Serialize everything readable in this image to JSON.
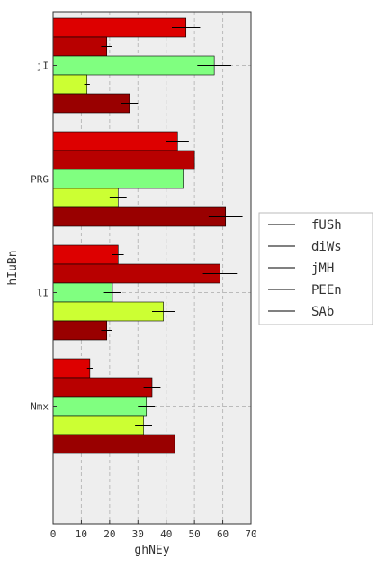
{
  "chart_data": {
    "type": "bar",
    "orientation": "horizontal",
    "title": "",
    "xlabel": "ghNEy",
    "ylabel": "hIuBn",
    "xlim": [
      0,
      70
    ],
    "x_ticks": [
      0,
      10,
      20,
      30,
      40,
      50,
      60,
      70
    ],
    "categories": [
      "jI",
      "PRG",
      "lI",
      "Nmx"
    ],
    "grid": true,
    "legend_position": "right",
    "series": [
      {
        "name": "fUSh",
        "color": "#dd0000",
        "values": [
          47,
          44,
          23,
          13
        ],
        "errors": [
          5,
          4,
          2,
          1
        ]
      },
      {
        "name": "diWs",
        "color": "#b80000",
        "values": [
          19,
          50,
          59,
          35
        ],
        "errors": [
          2,
          5,
          6,
          3
        ]
      },
      {
        "name": "jMH",
        "color": "#80ff80",
        "values": [
          57,
          46,
          21,
          33
        ],
        "errors": [
          6,
          5,
          3,
          3
        ]
      },
      {
        "name": "PEEn",
        "color": "#ccff33",
        "values": [
          12,
          23,
          39,
          32
        ],
        "errors": [
          1,
          3,
          4,
          3
        ]
      },
      {
        "name": "SAb",
        "color": "#990000",
        "values": [
          27,
          61,
          19,
          43
        ],
        "errors": [
          3,
          6,
          2,
          5
        ]
      }
    ]
  }
}
